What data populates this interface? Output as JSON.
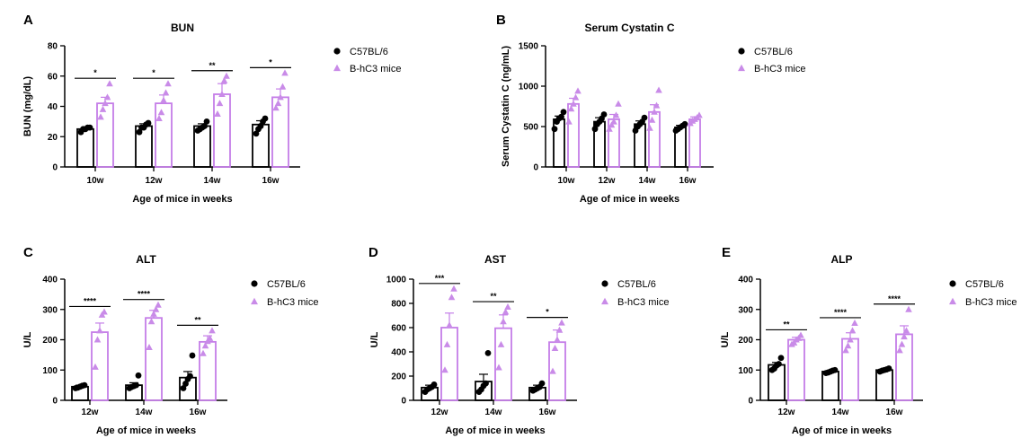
{
  "legend": {
    "control": "C57BL/6",
    "treated": "B-hC3 mice"
  },
  "colors": {
    "control": "#000000",
    "treated": "#c57ee8",
    "point_control": "#000000",
    "point_treated": "#c98be8"
  },
  "chart_data": [
    {
      "panel": "A",
      "type": "bar",
      "title": "BUN",
      "xlabel": "Age of mice in weeks",
      "ylabel": "BUN (mg/dL)",
      "ylim": [
        0,
        80
      ],
      "yticks": [
        0,
        20,
        40,
        60,
        80
      ],
      "grid": false,
      "legend_position": "right",
      "categories": [
        "10w",
        "12w",
        "14w",
        "16w"
      ],
      "significance": [
        "*",
        "*",
        "**",
        "*"
      ],
      "series": [
        {
          "name": "C57BL/6",
          "values": [
            25,
            27,
            27,
            28
          ],
          "errors": [
            1,
            1.5,
            1.5,
            2.5
          ],
          "points": [
            [
              23,
              25,
              25,
              26,
              26
            ],
            [
              23,
              26,
              26,
              28,
              29
            ],
            [
              24,
              25,
              26,
              27,
              30
            ],
            [
              22,
              25,
              27,
              30,
              32
            ]
          ]
        },
        {
          "name": "B-hC3 mice",
          "values": [
            42,
            42,
            48,
            46
          ],
          "errors": [
            4,
            5.5,
            7,
            5.5
          ],
          "points": [
            [
              33,
              38,
              42,
              46,
              55
            ],
            [
              32,
              36,
              44,
              49,
              55
            ],
            [
              35,
              42,
              48,
              57,
              60
            ],
            [
              39,
              42,
              46,
              53,
              62
            ]
          ]
        }
      ]
    },
    {
      "panel": "B",
      "type": "bar",
      "title": "Serum Cystatin C",
      "xlabel": "Age of mice in weeks",
      "ylabel": "Serum Cystatin C (ng/mL)",
      "ylim": [
        0,
        1500
      ],
      "yticks": [
        0,
        500,
        1000,
        1500
      ],
      "grid": false,
      "legend_position": "right",
      "categories": [
        "10w",
        "12w",
        "14w",
        "16w"
      ],
      "significance": [
        "",
        "",
        "",
        ""
      ],
      "series": [
        {
          "name": "C57BL/6",
          "values": [
            590,
            560,
            530,
            490
          ],
          "errors": [
            40,
            50,
            40,
            25
          ],
          "points": [
            [
              470,
              560,
              600,
              620,
              680
            ],
            [
              470,
              530,
              560,
              600,
              650
            ],
            [
              450,
              500,
              530,
              560,
              610
            ],
            [
              450,
              470,
              490,
              510,
              530
            ]
          ]
        },
        {
          "name": "B-hC3 mice",
          "values": [
            780,
            590,
            680,
            590
          ],
          "errors": [
            70,
            60,
            90,
            30
          ],
          "points": [
            [
              560,
              720,
              780,
              860,
              940
            ],
            [
              470,
              520,
              560,
              640,
              780
            ],
            [
              480,
              580,
              680,
              760,
              950
            ],
            [
              540,
              570,
              590,
              610,
              640
            ]
          ]
        }
      ]
    },
    {
      "panel": "C",
      "type": "bar",
      "title": "ALT",
      "xlabel": "Age of mice in weeks",
      "ylabel": "U/L",
      "ylim": [
        0,
        400
      ],
      "yticks": [
        0,
        100,
        200,
        300,
        400
      ],
      "grid": false,
      "legend_position": "right",
      "categories": [
        "12w",
        "14w",
        "16w"
      ],
      "significance": [
        "****",
        "****",
        "**"
      ],
      "series": [
        {
          "name": "C57BL/6",
          "values": [
            45,
            50,
            75
          ],
          "errors": [
            5,
            8,
            20
          ],
          "points": [
            [
              40,
              42,
              45,
              48,
              50
            ],
            [
              40,
              44,
              47,
              50,
              82
            ],
            [
              40,
              55,
              70,
              80,
              148
            ]
          ]
        },
        {
          "name": "B-hC3 mice",
          "values": [
            225,
            272,
            193
          ],
          "errors": [
            30,
            25,
            20
          ],
          "points": [
            [
              110,
              200,
              230,
              282,
              292
            ],
            [
              175,
              260,
              285,
              300,
              315
            ],
            [
              155,
              180,
              195,
              205,
              230
            ]
          ]
        }
      ]
    },
    {
      "panel": "D",
      "type": "bar",
      "title": "AST",
      "xlabel": "Age of mice in weeks",
      "ylabel": "U/L",
      "ylim": [
        0,
        1000
      ],
      "yticks": [
        0,
        200,
        400,
        600,
        800,
        1000
      ],
      "grid": false,
      "legend_position": "right",
      "categories": [
        "12w",
        "14w",
        "16w"
      ],
      "significance": [
        "***",
        "**",
        "*"
      ],
      "series": [
        {
          "name": "C57BL/6",
          "values": [
            105,
            155,
            105
          ],
          "errors": [
            20,
            60,
            20
          ],
          "points": [
            [
              70,
              90,
              100,
              110,
              130
            ],
            [
              70,
              90,
              120,
              140,
              390
            ],
            [
              80,
              90,
              100,
              110,
              140
            ]
          ]
        },
        {
          "name": "B-hC3 mice",
          "values": [
            600,
            595,
            480
          ],
          "errors": [
            120,
            110,
            100
          ],
          "points": [
            [
              250,
              460,
              620,
              850,
              920
            ],
            [
              270,
              460,
              650,
              730,
              770
            ],
            [
              240,
              430,
              500,
              580,
              640
            ]
          ]
        }
      ]
    },
    {
      "panel": "E",
      "type": "bar",
      "title": "ALP",
      "xlabel": "Age of mice in weeks",
      "ylabel": "U/L",
      "ylim": [
        0,
        400
      ],
      "yticks": [
        0,
        100,
        200,
        300,
        400
      ],
      "grid": false,
      "legend_position": "right",
      "categories": [
        "12w",
        "14w",
        "16w"
      ],
      "significance": [
        "**",
        "****",
        "****"
      ],
      "series": [
        {
          "name": "C57BL/6",
          "values": [
            117,
            95,
            100
          ],
          "errors": [
            8,
            3,
            3
          ],
          "points": [
            [
              100,
              105,
              115,
              120,
              140
            ],
            [
              90,
              92,
              95,
              98,
              100
            ],
            [
              95,
              98,
              100,
              102,
              105
            ]
          ]
        },
        {
          "name": "B-hC3 mice",
          "values": [
            200,
            203,
            218
          ],
          "errors": [
            8,
            20,
            28
          ],
          "points": [
            [
              185,
              190,
              200,
              205,
              215
            ],
            [
              165,
              180,
              200,
              230,
              255
            ],
            [
              165,
              185,
              210,
              230,
              300
            ]
          ]
        }
      ]
    }
  ]
}
